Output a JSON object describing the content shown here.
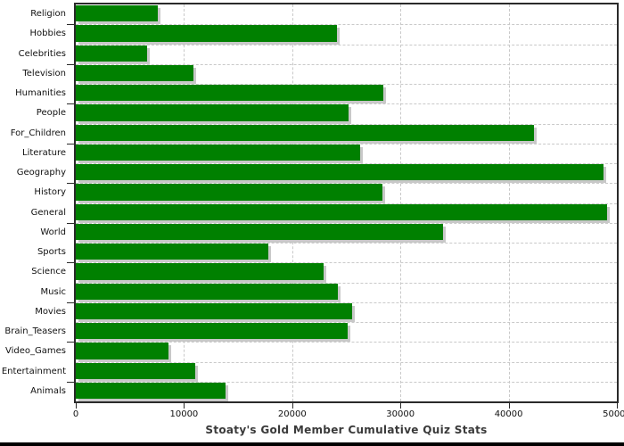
{
  "chart_data": {
    "type": "bar",
    "orientation": "horizontal",
    "title": "Stoaty's Gold Member Cumulative Quiz Stats",
    "categories": [
      "Religion",
      "Hobbies",
      "Celebrities",
      "Television",
      "Humanities",
      "People",
      "For_Children",
      "Literature",
      "Geography",
      "History",
      "General",
      "World",
      "Sports",
      "Science",
      "Music",
      "Movies",
      "Brain_Teasers",
      "Video_Games",
      "Entertainment",
      "Animals"
    ],
    "values": [
      7600,
      24100,
      6600,
      10900,
      28400,
      25200,
      42300,
      26300,
      48800,
      28300,
      49100,
      33900,
      17800,
      22900,
      24200,
      25500,
      25100,
      8600,
      11000,
      13800
    ],
    "xlabel": "",
    "ylabel": "",
    "xlim": [
      0,
      50000
    ],
    "x_ticks": [
      0,
      10000,
      20000,
      30000,
      40000,
      50000
    ],
    "x_tick_labels": [
      "0",
      "10000",
      "20000",
      "30000",
      "40000",
      "50000"
    ],
    "grid": true,
    "legend": null,
    "colors": {
      "bar": "#008000",
      "bar_shadow": "#c8c8c8",
      "gridline": "#c9c9c9",
      "frame": "#2a2a2a",
      "title": "#3a3a3a",
      "tick_label": "#111111",
      "background": "#ffffff",
      "bottom_bar": "#000000"
    }
  }
}
